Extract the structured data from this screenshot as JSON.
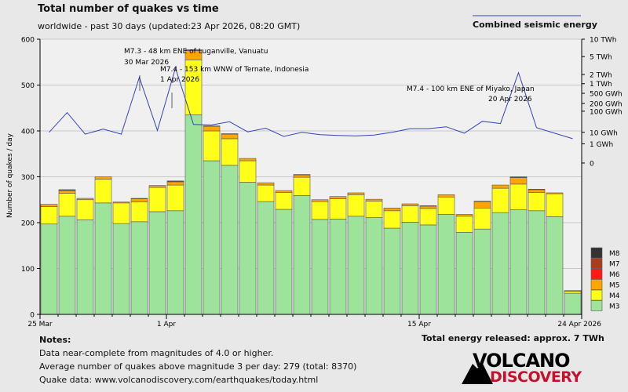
{
  "header": {
    "title": "Total number of quakes vs time",
    "subtitle": "worldwide - past 30 days (updated:23 Apr 2026, 08:20 GMT)",
    "energy_legend": "Combined seismic energy"
  },
  "footer": {
    "notes_heading": "Notes:",
    "note1": "Data near-complete from magnitudes of 4.0 or higher.",
    "note2": "Average number of quakes above magnitude 3 per day: 279 (total: 8370)",
    "note3": "Quake data: www.volcanodiscovery.com/earthquakes/today.html",
    "total_energy": "Total energy released: approx. 7 TWh",
    "logo_top": "VOLCANO",
    "logo_bottom": "DISCOVERY"
  },
  "colors": {
    "M3": "#9de39c",
    "M4": "#ffff1a",
    "M5": "#ffa500",
    "M6": "#ff1a1a",
    "M7": "#b03a1e",
    "M8": "#333333",
    "energy_line": "#3344bb",
    "plot_bg": "#f0f0f0"
  },
  "chart_data": {
    "type": "bar",
    "stacked": true,
    "ylabel": "Number of quakes / day",
    "ylim": [
      0,
      600
    ],
    "yticks": [
      0,
      100,
      200,
      300,
      400,
      500,
      600
    ],
    "x_start": "25 Mar 2026",
    "days": 30,
    "x_ticks": [
      {
        "day": 0,
        "label": "25 Mar"
      },
      {
        "day": 7,
        "label": "1 Apr"
      },
      {
        "day": 21,
        "label": "15 Apr"
      },
      {
        "day": 30,
        "label": "24 Apr 2026"
      }
    ],
    "series": [
      {
        "name": "M3",
        "values": [
          197,
          214,
          206,
          243,
          198,
          202,
          224,
          226,
          435,
          335,
          325,
          288,
          246,
          229,
          259,
          207,
          208,
          214,
          211,
          188,
          201,
          195,
          218,
          179,
          186,
          222,
          228,
          226,
          213,
          46
        ]
      },
      {
        "name": "M4",
        "values": [
          38,
          50,
          44,
          52,
          45,
          43,
          53,
          56,
          120,
          65,
          58,
          47,
          36,
          37,
          40,
          39,
          44,
          47,
          36,
          38,
          36,
          36,
          38,
          35,
          46,
          53,
          56,
          40,
          50,
          4
        ]
      },
      {
        "name": "M5",
        "values": [
          5,
          6,
          3,
          5,
          2,
          7,
          4,
          7,
          20,
          10,
          10,
          5,
          5,
          4,
          5,
          4,
          5,
          4,
          4,
          6,
          4,
          5,
          5,
          4,
          14,
          7,
          14,
          6,
          2,
          2
        ]
      },
      {
        "name": "M6",
        "values": [
          0,
          1,
          0,
          0,
          0,
          1,
          0,
          1,
          1,
          1,
          1,
          0,
          0,
          0,
          1,
          0,
          0,
          0,
          0,
          0,
          0,
          1,
          0,
          0,
          1,
          0,
          1,
          1,
          0,
          0
        ]
      },
      {
        "name": "M7",
        "values": [
          0,
          1,
          0,
          0,
          0,
          0,
          0,
          1,
          1,
          0,
          0,
          0,
          0,
          0,
          0,
          0,
          0,
          0,
          0,
          0,
          0,
          0,
          0,
          0,
          0,
          0,
          1,
          0,
          0,
          0
        ]
      },
      {
        "name": "M8",
        "values": [
          0,
          0,
          0,
          0,
          0,
          0,
          0,
          0,
          0,
          0,
          0,
          0,
          0,
          0,
          0,
          0,
          0,
          0,
          0,
          0,
          0,
          0,
          0,
          0,
          0,
          0,
          0,
          0,
          0,
          0
        ]
      }
    ],
    "legend": [
      "M8",
      "M7",
      "M6",
      "M5",
      "M4",
      "M3"
    ],
    "energy": {
      "name": "Combined seismic energy",
      "axis_labels": [
        {
          "label": "10 TWh",
          "v": 600
        },
        {
          "label": "5 TWh",
          "v": 562
        },
        {
          "label": "2 TWh",
          "v": 523
        },
        {
          "label": "1 TWh",
          "v": 503
        },
        {
          "label": "500 GWh",
          "v": 482
        },
        {
          "label": "200 GWh",
          "v": 460
        },
        {
          "label": "100 GWh",
          "v": 443
        },
        {
          "label": "10 GWh",
          "v": 397
        },
        {
          "label": "1 GWh",
          "v": 372
        },
        {
          "label": "0",
          "v": 330
        }
      ],
      "values": [
        397,
        440,
        393,
        404,
        393,
        517,
        401,
        537,
        414,
        413,
        420,
        398,
        406,
        388,
        397,
        392,
        390,
        389,
        391,
        397,
        405,
        405,
        409,
        395,
        421,
        416,
        527,
        407,
        395,
        383
      ]
    },
    "annotations": [
      {
        "text": "M7.3 - 48 km ENE of Luganville, Vanuatu",
        "date": "30 Mar 2026"
      },
      {
        "text": "M7.4 - 153 km WNW of Ternate, Indonesia",
        "date": "1 Apr 2026"
      },
      {
        "text": "M7.4 - 100 km ENE of Miyako, Japan",
        "date": "20 Apr 2026"
      }
    ]
  }
}
